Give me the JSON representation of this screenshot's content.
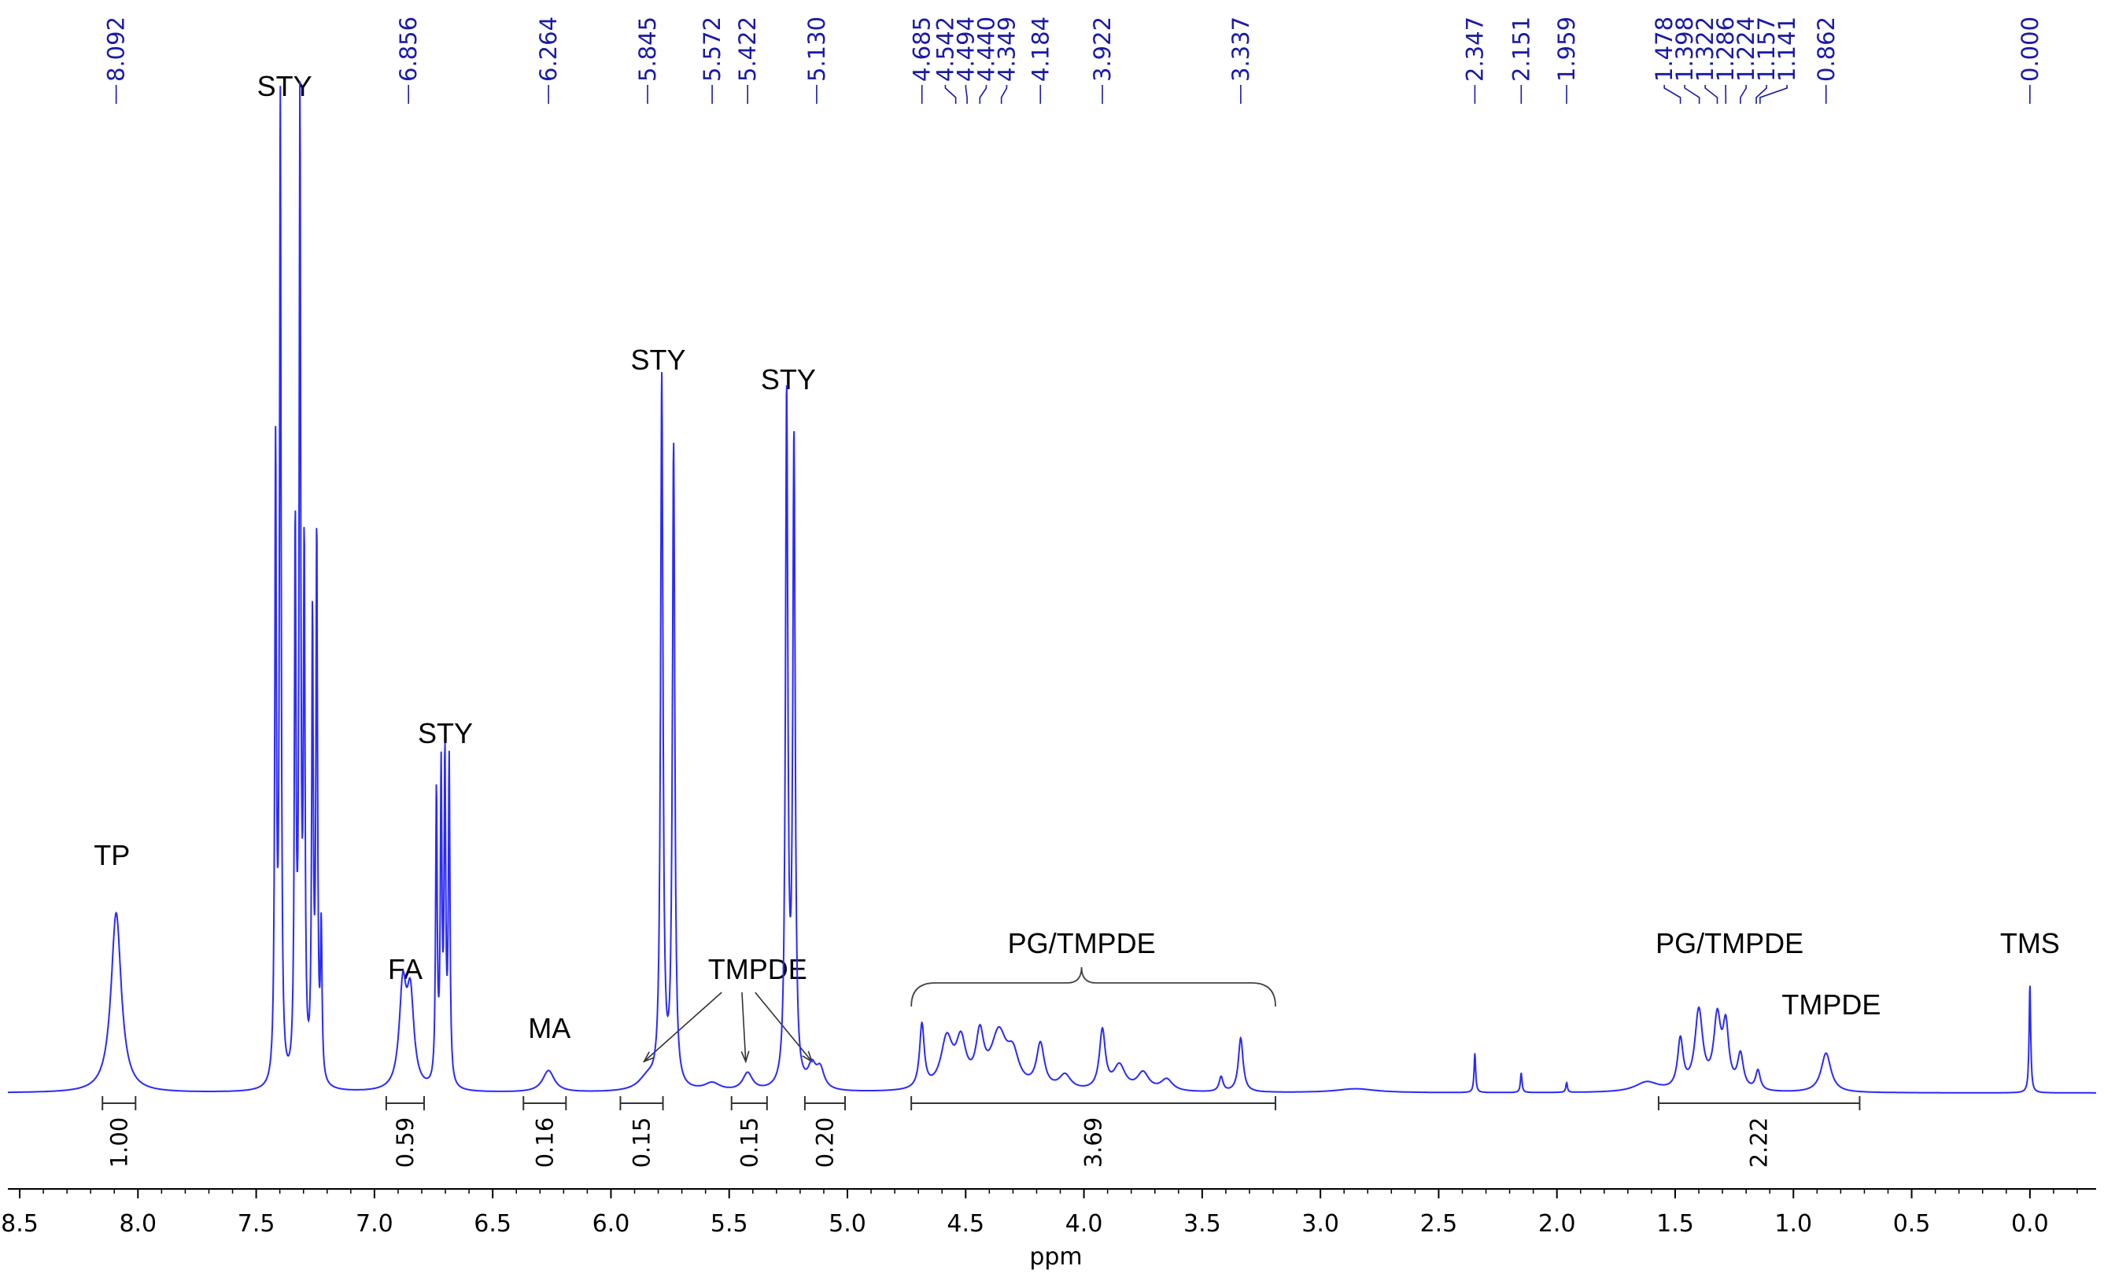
{
  "chart_data": {
    "type": "line",
    "title": "",
    "xlabel": "ppm",
    "ylabel": "",
    "xlim": [
      8.55,
      -0.28
    ],
    "x_reversed": true,
    "line_color": "#2a2aff",
    "label_color": "#1a1aa6",
    "x_ticks": [
      "8.5",
      "8.0",
      "7.5",
      "7.0",
      "6.5",
      "6.0",
      "5.5",
      "5.0",
      "4.5",
      "4.0",
      "3.5",
      "3.0",
      "2.5",
      "2.0",
      "1.5",
      "1.0",
      "0.5",
      "0.0"
    ],
    "peak_picks": [
      "8.092",
      "6.856",
      "6.264",
      "5.845",
      "5.572",
      "5.422",
      "5.130",
      "4.685",
      "4.542",
      "4.494",
      "4.440",
      "4.349",
      "4.184",
      "3.922",
      "3.337",
      "2.347",
      "2.151",
      "1.959",
      "1.478",
      "1.398",
      "1.322",
      "1.286",
      "1.224",
      "1.157",
      "1.141",
      "0.862",
      "0.000"
    ],
    "series": [
      {
        "peaks": [
          {
            "x": 8.092,
            "h": 0.183,
            "w": 0.026
          },
          {
            "x": 7.418,
            "h": 0.64,
            "w": 0.004
          },
          {
            "x": 7.398,
            "h": 1.0,
            "w": 0.004
          },
          {
            "x": 7.335,
            "h": 0.55,
            "w": 0.004
          },
          {
            "x": 7.315,
            "h": 0.98,
            "w": 0.004
          },
          {
            "x": 7.297,
            "h": 0.52,
            "w": 0.004
          },
          {
            "x": 7.262,
            "h": 0.46,
            "w": 0.004
          },
          {
            "x": 7.244,
            "h": 0.55,
            "w": 0.004
          },
          {
            "x": 7.225,
            "h": 0.15,
            "w": 0.004
          },
          {
            "x": 6.88,
            "h": 0.1,
            "w": 0.018
          },
          {
            "x": 6.848,
            "h": 0.09,
            "w": 0.018
          },
          {
            "x": 6.738,
            "h": 0.295,
            "w": 0.004
          },
          {
            "x": 6.718,
            "h": 0.31,
            "w": 0.004
          },
          {
            "x": 6.702,
            "h": 0.32,
            "w": 0.004
          },
          {
            "x": 6.684,
            "h": 0.325,
            "w": 0.004
          },
          {
            "x": 6.264,
            "h": 0.022,
            "w": 0.03
          },
          {
            "x": 5.845,
            "h": 0.013,
            "w": 0.045
          },
          {
            "x": 5.785,
            "h": 0.72,
            "w": 0.006
          },
          {
            "x": 5.735,
            "h": 0.65,
            "w": 0.006
          },
          {
            "x": 5.572,
            "h": 0.008,
            "w": 0.04
          },
          {
            "x": 5.422,
            "h": 0.018,
            "w": 0.025
          },
          {
            "x": 5.257,
            "h": 0.7,
            "w": 0.006
          },
          {
            "x": 5.226,
            "h": 0.65,
            "w": 0.006
          },
          {
            "x": 5.15,
            "h": 0.022,
            "w": 0.02
          },
          {
            "x": 5.115,
            "h": 0.02,
            "w": 0.02
          },
          {
            "x": 4.685,
            "h": 0.065,
            "w": 0.012
          },
          {
            "x": 4.58,
            "h": 0.05,
            "w": 0.03
          },
          {
            "x": 4.52,
            "h": 0.045,
            "w": 0.025
          },
          {
            "x": 4.44,
            "h": 0.05,
            "w": 0.02
          },
          {
            "x": 4.36,
            "h": 0.055,
            "w": 0.04
          },
          {
            "x": 4.3,
            "h": 0.03,
            "w": 0.03
          },
          {
            "x": 4.184,
            "h": 0.045,
            "w": 0.02
          },
          {
            "x": 4.08,
            "h": 0.015,
            "w": 0.03
          },
          {
            "x": 3.922,
            "h": 0.06,
            "w": 0.015
          },
          {
            "x": 3.85,
            "h": 0.025,
            "w": 0.03
          },
          {
            "x": 3.75,
            "h": 0.018,
            "w": 0.03
          },
          {
            "x": 3.65,
            "h": 0.012,
            "w": 0.03
          },
          {
            "x": 3.42,
            "h": 0.015,
            "w": 0.01
          },
          {
            "x": 3.337,
            "h": 0.055,
            "w": 0.012
          },
          {
            "x": 2.85,
            "h": 0.004,
            "w": 0.1
          },
          {
            "x": 2.347,
            "h": 0.04,
            "w": 0.004
          },
          {
            "x": 2.151,
            "h": 0.02,
            "w": 0.004
          },
          {
            "x": 1.959,
            "h": 0.01,
            "w": 0.004
          },
          {
            "x": 1.62,
            "h": 0.01,
            "w": 0.06
          },
          {
            "x": 1.478,
            "h": 0.05,
            "w": 0.014
          },
          {
            "x": 1.4,
            "h": 0.08,
            "w": 0.02
          },
          {
            "x": 1.322,
            "h": 0.07,
            "w": 0.018
          },
          {
            "x": 1.286,
            "h": 0.06,
            "w": 0.015
          },
          {
            "x": 1.224,
            "h": 0.035,
            "w": 0.015
          },
          {
            "x": 1.15,
            "h": 0.02,
            "w": 0.012
          },
          {
            "x": 0.862,
            "h": 0.04,
            "w": 0.025
          },
          {
            "x": 0.0,
            "h": 0.11,
            "w": 0.004
          }
        ]
      }
    ],
    "annotations": [
      {
        "text": "TP",
        "x": 8.11
      },
      {
        "text": "STY",
        "x": 7.38
      },
      {
        "text": "STY",
        "x": 6.7
      },
      {
        "text": "FA",
        "x": 6.87
      },
      {
        "text": "MA",
        "x": 6.26
      },
      {
        "text": "STY",
        "x": 5.8
      },
      {
        "text": "TMPDE",
        "x": 5.38
      },
      {
        "text": "STY",
        "x": 5.25
      },
      {
        "text": "PG/TMPDE",
        "x": 4.01
      },
      {
        "text": "PG/TMPDE",
        "x": 1.27
      },
      {
        "text": "TMPDE",
        "x": 0.84
      },
      {
        "text": "TMS",
        "x": 0.0
      }
    ],
    "integrals": [
      {
        "value": "1.00",
        "from": 8.15,
        "to": 8.01
      },
      {
        "value": "0.59",
        "from": 6.95,
        "to": 6.79
      },
      {
        "value": "0.16",
        "from": 6.37,
        "to": 6.19
      },
      {
        "value": "0.15",
        "from": 5.96,
        "to": 5.78
      },
      {
        "value": "0.15",
        "from": 5.49,
        "to": 5.34
      },
      {
        "value": "0.20",
        "from": 5.18,
        "to": 5.01
      },
      {
        "value": "3.69",
        "from": 4.73,
        "to": 3.19
      },
      {
        "value": "2.22",
        "from": 1.57,
        "to": 0.72
      }
    ]
  }
}
